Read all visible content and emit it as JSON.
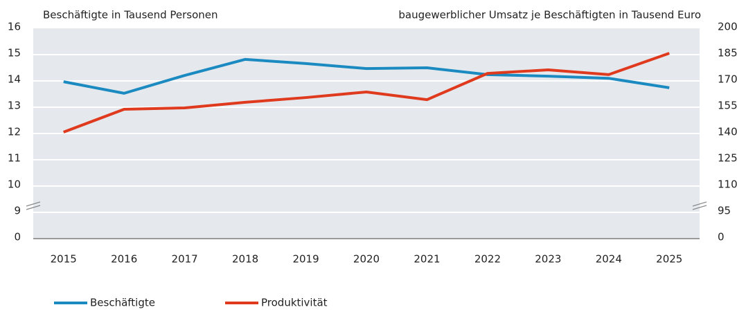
{
  "chart_data": {
    "type": "line",
    "y_label": "Beschäftigte in Tausend Personen",
    "y2_label": "baugewerblicher Umsatz je Beschäftigten in Tausend Euro",
    "categories": [
      "2015",
      "2016",
      "2017",
      "2018",
      "2019",
      "2020",
      "2021",
      "2022",
      "2023",
      "2024",
      "2025"
    ],
    "series": [
      {
        "name": "Beschäftigte",
        "color": "#1a8ac0",
        "values": [
          13.97,
          13.53,
          14.21,
          14.82,
          14.66,
          14.47,
          14.5,
          14.24,
          14.18,
          14.1,
          13.74
        ]
      },
      {
        "name": "Produktivität",
        "color": "#e03a1e",
        "axis": "y2",
        "values": [
          140.8,
          153.8,
          154.6,
          157.8,
          160.5,
          163.7,
          159.3,
          174.3,
          176.3,
          173.6,
          185.8
        ]
      }
    ],
    "ylim": [
      8,
      16
    ],
    "yticks": [
      0,
      9,
      10,
      11,
      12,
      13,
      14,
      15,
      16
    ],
    "y2lim": [
      80,
      200
    ],
    "y2ticks": [
      0,
      95,
      110,
      125,
      140,
      155,
      170,
      185,
      200
    ],
    "axis_break": true,
    "grid": true
  }
}
